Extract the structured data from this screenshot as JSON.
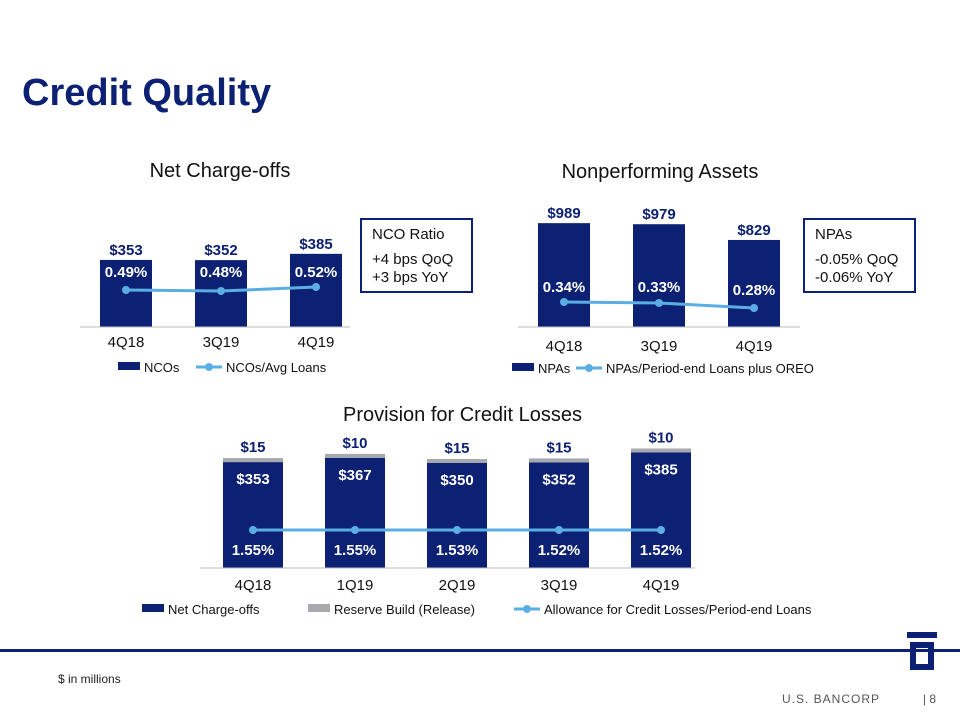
{
  "page": {
    "title": "Credit Quality",
    "footnote": "$ in millions",
    "brand": "U.S. BANCORP",
    "page_number": "|  8"
  },
  "colors": {
    "navy": "#0c2074",
    "gray": "#a6a9ad",
    "line": "#5aaee3",
    "text": "#111111"
  },
  "callouts": {
    "nco": {
      "head": "NCO Ratio",
      "lines": [
        "+4 bps QoQ",
        "+3 bps YoY"
      ]
    },
    "npa": {
      "head": "NPAs",
      "lines": [
        "-0.05% QoQ",
        "-0.06% YoY"
      ]
    }
  },
  "chart_data": [
    {
      "id": "nco",
      "type": "bar",
      "title": "Net Charge-offs",
      "categories": [
        "4Q18",
        "3Q19",
        "4Q19"
      ],
      "series": [
        {
          "name": "NCOs",
          "type": "bar",
          "values": [
            353,
            352,
            385
          ],
          "labels": [
            "$353",
            "$352",
            "$385"
          ]
        },
        {
          "name": "NCOs/Avg Loans",
          "type": "line",
          "values": [
            0.49,
            0.48,
            0.52
          ],
          "labels": [
            "0.49%",
            "0.48%",
            "0.52%"
          ]
        }
      ]
    },
    {
      "id": "npa",
      "type": "bar",
      "title": "Nonperforming Assets",
      "categories": [
        "4Q18",
        "3Q19",
        "4Q19"
      ],
      "series": [
        {
          "name": "NPAs",
          "type": "bar",
          "values": [
            989,
            979,
            829
          ],
          "labels": [
            "$989",
            "$979",
            "$829"
          ]
        },
        {
          "name": "NPAs/Period-end Loans plus OREO",
          "type": "line",
          "values": [
            0.34,
            0.33,
            0.28
          ],
          "labels": [
            "0.34%",
            "0.33%",
            "0.28%"
          ]
        }
      ]
    },
    {
      "id": "provision",
      "type": "bar",
      "title": "Provision for Credit Losses",
      "categories": [
        "4Q18",
        "1Q19",
        "2Q19",
        "3Q19",
        "4Q19"
      ],
      "series": [
        {
          "name": "Net Charge-offs",
          "type": "bar",
          "values": [
            353,
            367,
            350,
            352,
            385
          ],
          "labels": [
            "$353",
            "$367",
            "$350",
            "$352",
            "$385"
          ]
        },
        {
          "name": "Reserve Build (Release)",
          "type": "bar",
          "values": [
            15,
            10,
            15,
            15,
            10
          ],
          "labels": [
            "$15",
            "$10",
            "$15",
            "$15",
            "$10"
          ]
        },
        {
          "name": "Allowance for Credit Losses/Period-end Loans",
          "type": "line",
          "values": [
            1.55,
            1.55,
            1.53,
            1.52,
            1.52
          ],
          "labels": [
            "1.55%",
            "1.55%",
            "1.53%",
            "1.52%",
            "1.52%"
          ]
        }
      ]
    }
  ]
}
